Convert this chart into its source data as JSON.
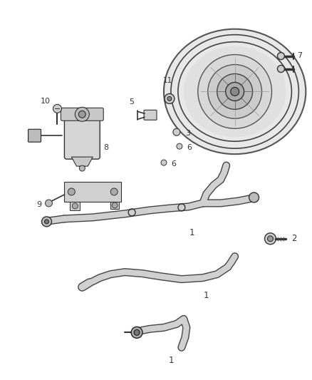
{
  "bg_color": "#ffffff",
  "fig_width": 4.38,
  "fig_height": 5.33,
  "dpi": 100,
  "line_color": "#555555",
  "dark": "#333333",
  "mid": "#888888",
  "light": "#cccccc"
}
